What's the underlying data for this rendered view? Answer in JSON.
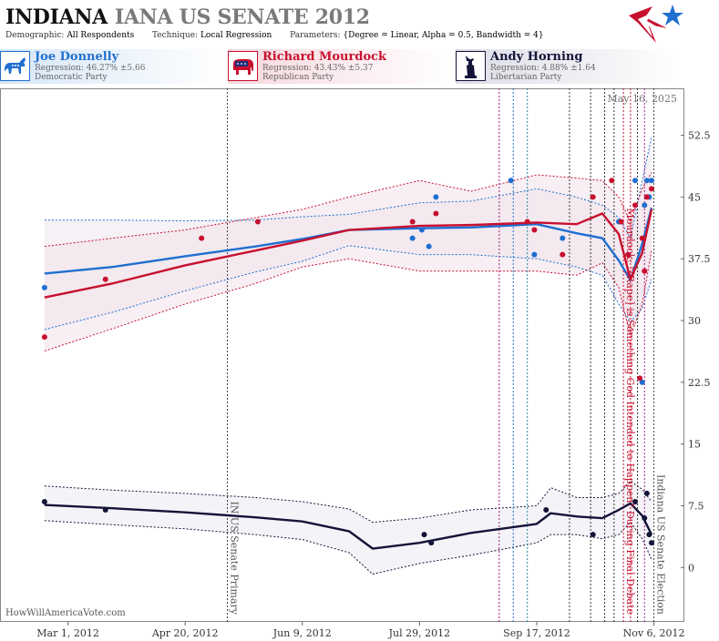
{
  "header": {
    "state": "INDIANA",
    "race": "IANA US SENATE 2012",
    "demographic_label": "Demographic:",
    "demographic_value": "All Respondents",
    "technique_label": "Technique:",
    "technique_value": "Local Regression",
    "parameters_label": "Parameters:",
    "parameters_value": "{Degree = Linear, Alpha = 0.5, Bandwidth = 4}"
  },
  "candidates": [
    {
      "name": "Joe Donnelly",
      "regression": "Regression: 46.27% ±5.66",
      "party": "Democratic Party",
      "icon": "donkey-icon",
      "color": "#1f6fd1"
    },
    {
      "name": "Richard Mourdock",
      "regression": "Regression: 43.43% ±5.37",
      "party": "Republican Party",
      "icon": "elephant-icon",
      "color": "#c8102e"
    },
    {
      "name": "Andy Horning",
      "regression": "Regression: 4.88% ±1.64",
      "party": "Libertarian Party",
      "icon": "liberty-statue-icon",
      "color": "#14143a"
    }
  ],
  "footer": {
    "site": "HowWillAmericaVote.com"
  },
  "chart_data": {
    "type": "line",
    "title": "",
    "xlabel": "",
    "ylabel": "",
    "date_stamp": "May 16, 2025",
    "x_range": [
      "2012-02-01",
      "2012-11-19"
    ],
    "ylim": [
      -6.6,
      58.2
    ],
    "y_ticks": [
      0,
      7.5,
      15,
      22.5,
      30,
      37.5,
      45,
      52.5
    ],
    "y_tick_labels": [
      "0",
      "7.5",
      "15",
      "22.5",
      "30",
      "37.5",
      "45",
      "52.5"
    ],
    "x_ticks": [
      {
        "date": "2012-03-01",
        "label": "Mar 1, 2012"
      },
      {
        "date": "2012-04-20",
        "label": "Apr 20, 2012"
      },
      {
        "date": "2012-06-09",
        "label": "Jun 9, 2012"
      },
      {
        "date": "2012-07-29",
        "label": "Jul 29, 2012"
      },
      {
        "date": "2012-09-17",
        "label": "Sep 17, 2012"
      },
      {
        "date": "2012-11-06",
        "label": "Nov 6, 2012"
      }
    ],
    "events": [
      {
        "date": "2012-05-08",
        "label": "IN US Senate Primary",
        "color": "#444444",
        "text_color": "#555555"
      },
      {
        "date": "2012-10-24",
        "label": "Mourdock: \"[Rape] is Something God Intended to Happen\" During Final Debate",
        "color": "#c8102e",
        "text_color": "#c8102e"
      },
      {
        "date": "2012-11-06",
        "label": "Indiana US Senate Election",
        "color": "#444444",
        "text_color": "#555555"
      }
    ],
    "vlines": [
      {
        "date": "2012-09-01",
        "color": "#a0207a"
      },
      {
        "date": "2012-09-07",
        "color": "#1f6fd1"
      },
      {
        "date": "2012-09-13",
        "color": "#2a8a9a"
      },
      {
        "date": "2012-10-01",
        "color": "#333333"
      },
      {
        "date": "2012-10-10",
        "color": "#333333"
      },
      {
        "date": "2012-10-16",
        "color": "#333333"
      },
      {
        "date": "2012-10-20",
        "color": "#333333"
      },
      {
        "date": "2012-10-27",
        "color": "#c8102e"
      },
      {
        "date": "2012-10-30",
        "color": "#333333"
      },
      {
        "date": "2012-11-02",
        "color": "#a0207a"
      }
    ],
    "series": [
      {
        "name": "Joe Donnelly",
        "color": "#1f6fd1",
        "x": [
          "2012-02-20",
          "2012-03-20",
          "2012-04-20",
          "2012-05-20",
          "2012-06-09",
          "2012-06-29",
          "2012-07-29",
          "2012-08-20",
          "2012-09-17",
          "2012-10-04",
          "2012-10-15",
          "2012-10-22",
          "2012-10-27",
          "2012-11-01",
          "2012-11-05"
        ],
        "y": [
          35.7,
          36.5,
          37.8,
          39.0,
          39.9,
          41.0,
          41.2,
          41.3,
          41.7,
          40.6,
          40.0,
          37.3,
          34.9,
          39.3,
          43.7
        ],
        "upper": [
          42.2,
          42.2,
          42.1,
          42.2,
          42.6,
          42.9,
          44.3,
          44.5,
          46.0,
          45.0,
          44.0,
          42.5,
          40.0,
          47.0,
          52.3
        ],
        "lower": [
          28.9,
          31.0,
          33.6,
          35.9,
          37.2,
          39.1,
          38.0,
          38.0,
          37.5,
          36.5,
          35.5,
          32.0,
          29.8,
          31.5,
          35.0
        ],
        "points": [
          {
            "x": "2012-02-20",
            "y": 34
          },
          {
            "x": "2012-07-26",
            "y": 40
          },
          {
            "x": "2012-07-30",
            "y": 41
          },
          {
            "x": "2012-08-02",
            "y": 39
          },
          {
            "x": "2012-08-05",
            "y": 45
          },
          {
            "x": "2012-09-06",
            "y": 47
          },
          {
            "x": "2012-09-16",
            "y": 38
          },
          {
            "x": "2012-09-28",
            "y": 40
          },
          {
            "x": "2012-10-22",
            "y": 42
          },
          {
            "x": "2012-10-26",
            "y": 38
          },
          {
            "x": "2012-10-29",
            "y": 47
          },
          {
            "x": "2012-11-01",
            "y": 22.5
          },
          {
            "x": "2012-11-02",
            "y": 44
          },
          {
            "x": "2012-11-03",
            "y": 47
          },
          {
            "x": "2012-11-04",
            "y": 45
          },
          {
            "x": "2012-11-05",
            "y": 47
          }
        ]
      },
      {
        "name": "Richard Mourdock",
        "color": "#c8102e",
        "x": [
          "2012-02-20",
          "2012-03-20",
          "2012-04-20",
          "2012-05-20",
          "2012-06-09",
          "2012-06-29",
          "2012-07-29",
          "2012-08-20",
          "2012-09-17",
          "2012-10-04",
          "2012-10-15",
          "2012-10-22",
          "2012-10-27",
          "2012-11-01",
          "2012-11-05"
        ],
        "y": [
          32.8,
          34.5,
          36.7,
          38.5,
          39.7,
          41.0,
          41.5,
          41.6,
          41.9,
          41.7,
          43.0,
          40.5,
          35.0,
          38.2,
          43.5
        ],
        "upper": [
          39.0,
          40.0,
          41.0,
          42.5,
          43.5,
          45.0,
          47.0,
          45.7,
          47.7,
          47.3,
          47.0,
          45.0,
          42.0,
          46.0,
          48.0
        ],
        "lower": [
          26.3,
          29.0,
          32.0,
          34.5,
          36.5,
          37.5,
          36.0,
          36.0,
          36.0,
          35.5,
          37.0,
          34.0,
          28.0,
          32.0,
          38.5
        ],
        "points": [
          {
            "x": "2012-02-20",
            "y": 28
          },
          {
            "x": "2012-03-17",
            "y": 35
          },
          {
            "x": "2012-04-27",
            "y": 40
          },
          {
            "x": "2012-05-21",
            "y": 42
          },
          {
            "x": "2012-07-26",
            "y": 42
          },
          {
            "x": "2012-08-05",
            "y": 43
          },
          {
            "x": "2012-09-13",
            "y": 42
          },
          {
            "x": "2012-09-16",
            "y": 41
          },
          {
            "x": "2012-09-28",
            "y": 38
          },
          {
            "x": "2012-10-11",
            "y": 45
          },
          {
            "x": "2012-10-19",
            "y": 47
          },
          {
            "x": "2012-10-23",
            "y": 42
          },
          {
            "x": "2012-10-26",
            "y": 38
          },
          {
            "x": "2012-10-29",
            "y": 44
          },
          {
            "x": "2012-10-31",
            "y": 23
          },
          {
            "x": "2012-11-01",
            "y": 40
          },
          {
            "x": "2012-11-02",
            "y": 36
          },
          {
            "x": "2012-11-03",
            "y": 45
          },
          {
            "x": "2012-11-05",
            "y": 46
          }
        ]
      },
      {
        "name": "Andy Horning",
        "color": "#14143a",
        "x": [
          "2012-02-20",
          "2012-03-20",
          "2012-04-20",
          "2012-05-20",
          "2012-06-09",
          "2012-06-29",
          "2012-07-09",
          "2012-07-29",
          "2012-08-20",
          "2012-09-17",
          "2012-09-23",
          "2012-10-04",
          "2012-10-15",
          "2012-10-22",
          "2012-10-27",
          "2012-11-01",
          "2012-11-05"
        ],
        "y": [
          7.6,
          7.2,
          6.7,
          6.1,
          5.6,
          4.4,
          2.3,
          3.0,
          4.2,
          5.3,
          6.6,
          6.2,
          6.0,
          7.0,
          7.8,
          6.3,
          4.0
        ],
        "upper": [
          9.9,
          9.4,
          9.0,
          8.5,
          8.0,
          7.1,
          5.5,
          6.0,
          7.0,
          7.5,
          9.7,
          8.5,
          8.5,
          9.0,
          10.5,
          9.5,
          8.0
        ],
        "lower": [
          5.7,
          5.2,
          4.7,
          4.0,
          3.4,
          1.8,
          -0.8,
          0.5,
          1.5,
          3.0,
          4.0,
          4.0,
          3.5,
          4.0,
          5.5,
          3.5,
          1.0
        ]
      }
    ],
    "points": [
      {
        "x": "2012-02-20",
        "y": 8
      },
      {
        "x": "2012-03-17",
        "y": 7
      },
      {
        "x": "2012-07-31",
        "y": 4
      },
      {
        "x": "2012-08-03",
        "y": 3
      },
      {
        "x": "2012-09-21",
        "y": 7
      },
      {
        "x": "2012-10-11",
        "y": 4
      },
      {
        "x": "2012-10-29",
        "y": 8
      },
      {
        "x": "2012-11-02",
        "y": 6
      },
      {
        "x": "2012-11-03",
        "y": 9
      },
      {
        "x": "2012-11-04",
        "y": 4
      },
      {
        "x": "2012-11-05",
        "y": 3
      }
    ]
  }
}
